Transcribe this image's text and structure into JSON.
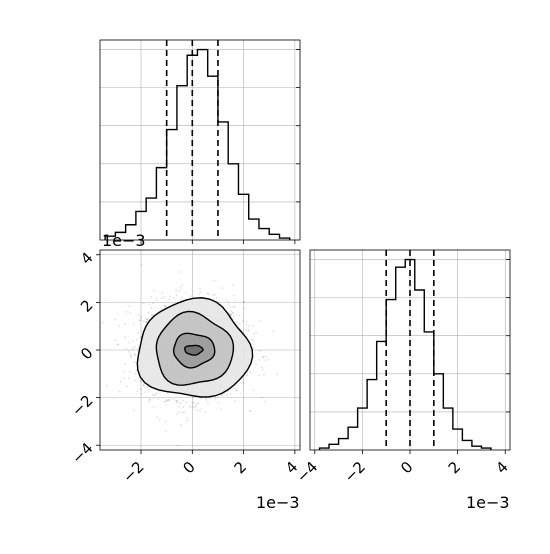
{
  "chart_data": [
    {
      "panel": "top-left",
      "type": "histogram",
      "variable": "x",
      "bin_edges": [
        -3.4,
        -3.0,
        -2.6,
        -2.2,
        -1.8,
        -1.4,
        -1.0,
        -0.6,
        -0.2,
        0.2,
        0.6,
        1.0,
        1.4,
        1.8,
        2.2,
        2.6,
        3.0,
        3.4,
        3.8
      ],
      "counts": [
        0.02,
        0.04,
        0.08,
        0.15,
        0.22,
        0.38,
        0.58,
        0.81,
        0.97,
        1.0,
        0.86,
        0.62,
        0.4,
        0.24,
        0.11,
        0.06,
        0.03,
        0.01
      ],
      "quantile_lines": [
        -1.0,
        0.0,
        1.0
      ],
      "xlim": [
        -3.6,
        4.2
      ],
      "ylim": [
        0,
        1.05
      ],
      "y_ticks": [
        0.2,
        0.4,
        0.6,
        0.8,
        1.0
      ],
      "grid": true,
      "y_tick_labels_shown": false,
      "x_tick_labels_shown": false
    },
    {
      "panel": "bottom-left",
      "type": "scatter-density-contour",
      "xvar": "x",
      "yvar": "y",
      "xlim": [
        -3.6,
        4.2
      ],
      "ylim": [
        -4.2,
        4.2
      ],
      "x_ticks": [
        -2,
        0,
        2,
        4
      ],
      "y_ticks": [
        -4,
        -2,
        0,
        2,
        4
      ],
      "x_tick_labels": [
        "−2",
        "0",
        "2",
        "4"
      ],
      "y_tick_labels": [
        "−4",
        "−2",
        "0",
        "2",
        "4"
      ],
      "x_offset_label": "1e−3",
      "y_offset_label": "1e−3",
      "point_sigma": 1.0,
      "contour_radii": [
        [
          0.35,
          0.2
        ],
        [
          0.8,
          0.7
        ],
        [
          1.5,
          1.5
        ],
        [
          2.2,
          2.05
        ]
      ],
      "density_levels": [
        "#6e6e6e",
        "#9a9a9a",
        "#c2c2c2",
        "#e6e6e6",
        "#f7f7f7"
      ],
      "grid": true
    },
    {
      "panel": "bottom-right",
      "type": "histogram",
      "variable": "y",
      "bin_edges": [
        -3.8,
        -3.4,
        -3.0,
        -2.6,
        -2.2,
        -1.8,
        -1.4,
        -1.0,
        -0.6,
        -0.2,
        0.2,
        0.6,
        1.0,
        1.4,
        1.8,
        2.2,
        2.6,
        3.0,
        3.4
      ],
      "counts": [
        0.01,
        0.03,
        0.06,
        0.12,
        0.22,
        0.37,
        0.57,
        0.79,
        0.96,
        1.0,
        0.84,
        0.62,
        0.4,
        0.22,
        0.11,
        0.05,
        0.02,
        0.01
      ],
      "quantile_lines": [
        -1.0,
        0.0,
        1.0
      ],
      "xlim": [
        -4.2,
        4.2
      ],
      "ylim": [
        0,
        1.05
      ],
      "x_ticks": [
        -4,
        -2,
        0,
        2,
        4
      ],
      "x_tick_labels": [
        "−4",
        "−2",
        "0",
        "2",
        "4"
      ],
      "y_ticks": [
        0.2,
        0.4,
        0.6,
        0.8,
        1.0
      ],
      "x_offset_label": "1e−3",
      "grid": true
    }
  ],
  "style": {
    "line_color": "#000000",
    "grid_color": "#b0b0b0",
    "axes_color": "#000000",
    "scatter_color": "#000000"
  }
}
